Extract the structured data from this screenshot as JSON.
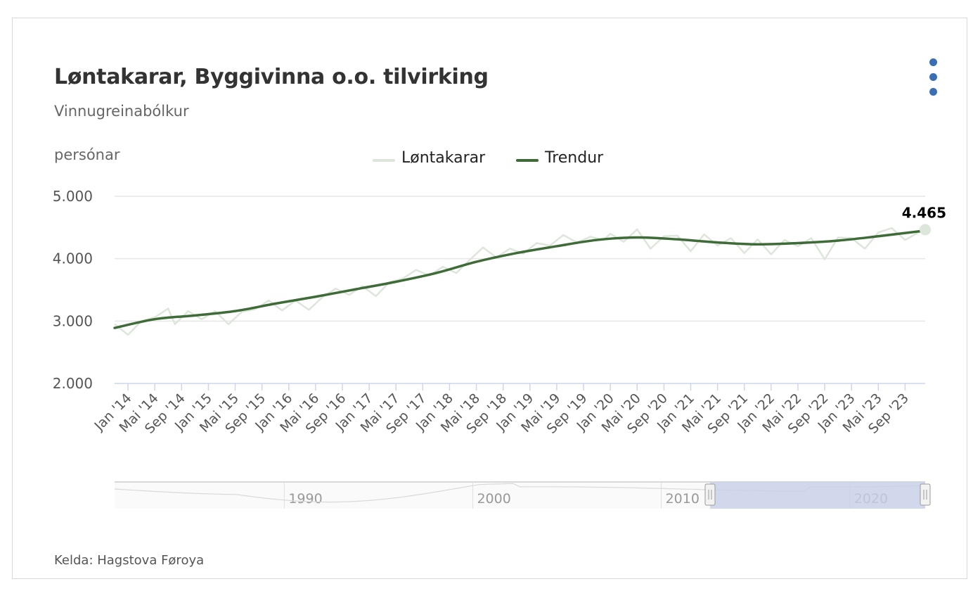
{
  "header": {
    "title": "Løntakarar, Byggivinna o.o. tilvirking",
    "subtitle": "Vinnugreinabólkur",
    "unit_label": "persónar"
  },
  "footer": {
    "source": "Kelda: Hagstova Føroya"
  },
  "colors": {
    "raw": "#dde6da",
    "trend": "#3e6b37",
    "grid": "#e6e6e6",
    "axis": "#ccd6eb",
    "menu": "#3b6fb3",
    "navigator_mask": "#c8d0e8"
  },
  "legend": [
    {
      "label": "Løntakarar"
    },
    {
      "label": "Trendur"
    }
  ],
  "chart_data": {
    "type": "line",
    "title": "Løntakarar, Byggivinna o.o. tilvirking",
    "subtitle": "Vinnugreinabólkur",
    "ylabel": "persónar",
    "ylim": [
      2000,
      5000
    ],
    "y_ticks": [
      "2.000",
      "3.000",
      "4.000",
      "5.000"
    ],
    "y_tick_values": [
      2000,
      3000,
      4000,
      5000
    ],
    "x_tick_labels": [
      "Jan '14",
      "Mai '14",
      "Sep '14",
      "Jan '15",
      "Mai '15",
      "Sep '15",
      "Jan '16",
      "Mai '16",
      "Sep '16",
      "Jan '17",
      "Mai '17",
      "Sep '17",
      "Jan '18",
      "Mai '18",
      "Sep '18",
      "Jan '19",
      "Mai '19",
      "Sep '19",
      "Jan '20",
      "Mai '20",
      "Sep '20",
      "Jan '21",
      "Mai '21",
      "Sep '21",
      "Jan '22",
      "Mai '22",
      "Sep '22",
      "Jan '23",
      "Mai '23",
      "Sep '23"
    ],
    "x_start": "2013-11",
    "x_end": "2023-12",
    "series": [
      {
        "name": "Løntakarar",
        "x": [
          "2013-11",
          "2014-01",
          "2014-03",
          "2014-05",
          "2014-07",
          "2014-08",
          "2014-10",
          "2014-12",
          "2015-02",
          "2015-04",
          "2015-06",
          "2015-08",
          "2015-10",
          "2015-12",
          "2016-02",
          "2016-04",
          "2016-06",
          "2016-08",
          "2016-10",
          "2016-12",
          "2017-02",
          "2017-04",
          "2017-06",
          "2017-08",
          "2017-10",
          "2017-12",
          "2018-02",
          "2018-04",
          "2018-06",
          "2018-08",
          "2018-10",
          "2018-12",
          "2019-02",
          "2019-04",
          "2019-06",
          "2019-08",
          "2019-10",
          "2019-12",
          "2020-01",
          "2020-03",
          "2020-05",
          "2020-07",
          "2020-09",
          "2020-11",
          "2021-01",
          "2021-03",
          "2021-05",
          "2021-07",
          "2021-09",
          "2021-11",
          "2022-01",
          "2022-03",
          "2022-05",
          "2022-07",
          "2022-09",
          "2022-11",
          "2023-01",
          "2023-03",
          "2023-05",
          "2023-07",
          "2023-09",
          "2023-11",
          "2023-12"
        ],
        "values": [
          2950,
          2780,
          3000,
          3060,
          3200,
          2950,
          3160,
          3030,
          3160,
          2950,
          3150,
          3190,
          3330,
          3170,
          3330,
          3180,
          3380,
          3520,
          3420,
          3560,
          3400,
          3620,
          3680,
          3820,
          3730,
          3870,
          3770,
          3980,
          4180,
          4020,
          4160,
          4080,
          4250,
          4210,
          4380,
          4260,
          4350,
          4300,
          4400,
          4270,
          4470,
          4160,
          4360,
          4370,
          4120,
          4390,
          4210,
          4330,
          4090,
          4310,
          4070,
          4300,
          4200,
          4330,
          3990,
          4340,
          4330,
          4160,
          4420,
          4490,
          4300,
          4420,
          4465
        ]
      },
      {
        "name": "Trendur",
        "x": [
          "2013-11",
          "2014-05",
          "2014-11",
          "2015-05",
          "2015-11",
          "2016-05",
          "2016-11",
          "2017-05",
          "2017-11",
          "2018-05",
          "2018-11",
          "2019-05",
          "2019-11",
          "2020-05",
          "2020-11",
          "2021-05",
          "2021-11",
          "2022-05",
          "2022-11",
          "2023-05",
          "2023-12"
        ],
        "values": [
          2890,
          3030,
          3090,
          3160,
          3280,
          3390,
          3510,
          3630,
          3770,
          3950,
          4090,
          4200,
          4300,
          4340,
          4310,
          4260,
          4230,
          4250,
          4290,
          4360,
          4450
        ]
      }
    ],
    "last_value_label": "4.465",
    "navigator": {
      "tick_labels": [
        "1990",
        "2000",
        "2010",
        "2020"
      ]
    }
  }
}
